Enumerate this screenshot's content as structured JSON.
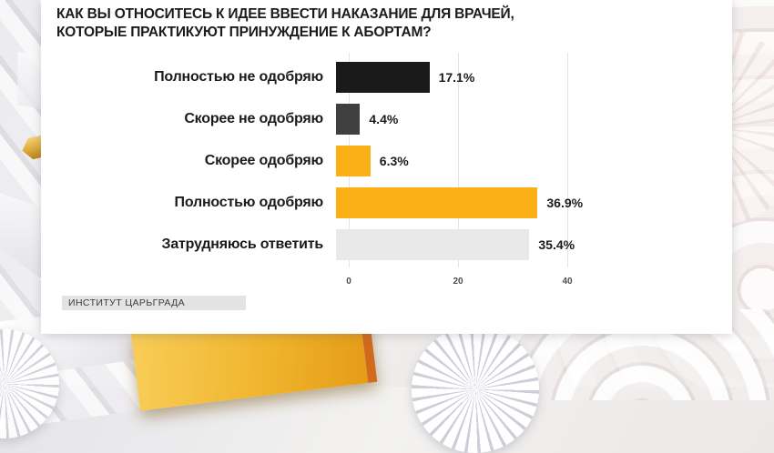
{
  "card": {
    "title": "КАК ВЫ ОТНОСИТЕСЬ К ИДЕЕ ВВЕСТИ НАКАЗАНИЕ ДЛЯ ВРАЧЕЙ, КОТОРЫЕ ПРАКТИКУЮТ ПРИНУЖДЕНИЕ К АБОРТАМ?",
    "source_label": "ИНСТИТУТ ЦАРЬГРАДА"
  },
  "chart_data": {
    "type": "bar",
    "orientation": "horizontal",
    "title": "КАК ВЫ ОТНОСИТЕСЬ К ИДЕЕ ВВЕСТИ НАКАЗАНИЕ ДЛЯ ВРАЧЕЙ, КОТОРЫЕ ПРАКТИКУЮТ ПРИНУЖДЕНИЕ К АБОРТАМ?",
    "categories": [
      "Полностью не одобряю",
      "Скорее не одобряю",
      "Скорее одобряю",
      "Полностью одобряю",
      "Затрудняюсь ответить"
    ],
    "values": [
      17.1,
      4.4,
      6.3,
      36.9,
      35.4
    ],
    "value_labels": [
      "17.1%",
      "4.4%",
      "6.3%",
      "36.9%",
      "35.4%"
    ],
    "bar_colors": [
      "#1a1a1a",
      "#3f3f3f",
      "#fbb116",
      "#fbb116",
      "#e9e9e9"
    ],
    "x_ticks": [
      0,
      20,
      40
    ],
    "xlim": [
      0,
      48
    ],
    "grid": true,
    "legend": false,
    "unit": "%",
    "source": "ИНСТИТУТ ЦАРЬГРАДА"
  },
  "colors": {
    "accent_amber": "#fbb116",
    "bar_black": "#1a1a1a",
    "bar_dark_gray": "#3f3f3f",
    "bar_light_gray": "#e9e9e9",
    "gridline": "#e4e4e4",
    "card_background": "#ffffff",
    "badge_background": "#e3e3e3"
  }
}
